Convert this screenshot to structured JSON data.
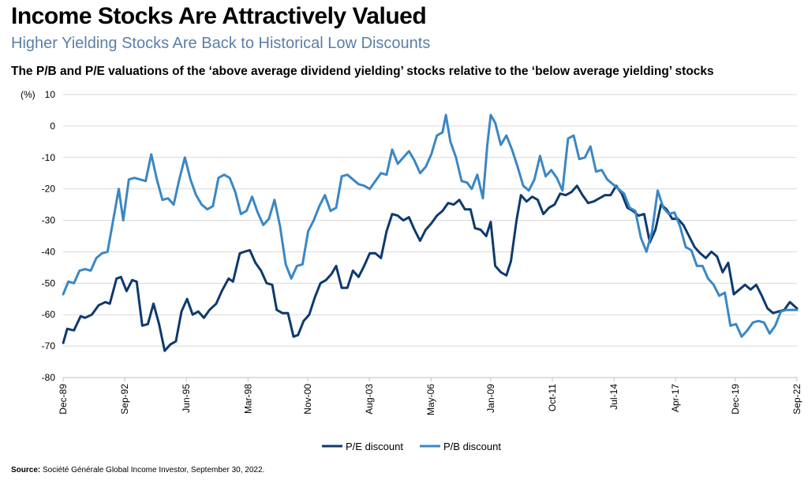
{
  "header": {
    "title": "Income Stocks Are Attractively Valued",
    "subtitle": "Higher Yielding Stocks Are Back to Historical Low Discounts",
    "caption": "The P/B and P/E valuations of the ‘above average dividend yielding’ stocks relative to the ‘below average yielding’ stocks"
  },
  "footer": {
    "source_label": "Source:",
    "source_text": " Société Générale Global Income Investor, September 30, 2022."
  },
  "chart_data": {
    "type": "line",
    "ylabel": "(%)",
    "ylim": [
      -80,
      10
    ],
    "yticks": [
      10,
      0,
      -10,
      -20,
      -30,
      -40,
      -50,
      -60,
      -70,
      -80
    ],
    "xrange": [
      1989.917,
      2022.667
    ],
    "xticks": [
      {
        "label": "Dec-89",
        "x": 1989.917
      },
      {
        "label": "Sep-92",
        "x": 1992.667
      },
      {
        "label": "Jun-95",
        "x": 1995.417
      },
      {
        "label": "Mar-98",
        "x": 1998.167
      },
      {
        "label": "Nov-00",
        "x": 2000.833
      },
      {
        "label": "Aug-03",
        "x": 2003.583
      },
      {
        "label": "May-06",
        "x": 2006.333
      },
      {
        "label": "Jan-09",
        "x": 2009.0
      },
      {
        "label": "Oct-11",
        "x": 2011.75
      },
      {
        "label": "Jul-14",
        "x": 2014.5
      },
      {
        "label": "Apr-17",
        "x": 2017.25
      },
      {
        "label": "Dec-19",
        "x": 2019.917
      },
      {
        "label": "Sep-22",
        "x": 2022.667
      }
    ],
    "grid": true,
    "legend_position": "bottom-center",
    "series": [
      {
        "name": "P/E discount",
        "color": "#0d3a6e",
        "points": [
          [
            1989.92,
            -69
          ],
          [
            1990.1,
            -64.5
          ],
          [
            1990.4,
            -65
          ],
          [
            1990.7,
            -60.5
          ],
          [
            1990.9,
            -61
          ],
          [
            1991.2,
            -60
          ],
          [
            1991.5,
            -57
          ],
          [
            1991.8,
            -56
          ],
          [
            1992.0,
            -56.5
          ],
          [
            1992.3,
            -48.5
          ],
          [
            1992.5,
            -48
          ],
          [
            1992.75,
            -52.5
          ],
          [
            1993.0,
            -49
          ],
          [
            1993.2,
            -49.5
          ],
          [
            1993.45,
            -63.5
          ],
          [
            1993.7,
            -63
          ],
          [
            1993.95,
            -56.5
          ],
          [
            1994.2,
            -63
          ],
          [
            1994.45,
            -71.5
          ],
          [
            1994.7,
            -69.5
          ],
          [
            1994.95,
            -68.5
          ],
          [
            1995.2,
            -59
          ],
          [
            1995.45,
            -55
          ],
          [
            1995.7,
            -60
          ],
          [
            1995.95,
            -59
          ],
          [
            1996.2,
            -61
          ],
          [
            1996.45,
            -58.5
          ],
          [
            1996.75,
            -56.5
          ],
          [
            1997.0,
            -52.5
          ],
          [
            1997.3,
            -48.5
          ],
          [
            1997.5,
            -49.5
          ],
          [
            1997.8,
            -40.5
          ],
          [
            1998.0,
            -40
          ],
          [
            1998.25,
            -39.5
          ],
          [
            1998.5,
            -43.5
          ],
          [
            1998.75,
            -46
          ],
          [
            1999.0,
            -50
          ],
          [
            1999.25,
            -50.5
          ],
          [
            1999.45,
            -58.5
          ],
          [
            1999.7,
            -59.5
          ],
          [
            1999.95,
            -59.5
          ],
          [
            2000.2,
            -67
          ],
          [
            2000.4,
            -66.5
          ],
          [
            2000.65,
            -62
          ],
          [
            2000.9,
            -60
          ],
          [
            2001.15,
            -54.5
          ],
          [
            2001.4,
            -50
          ],
          [
            2001.65,
            -49
          ],
          [
            2001.9,
            -47
          ],
          [
            2002.1,
            -44.5
          ],
          [
            2002.35,
            -51.5
          ],
          [
            2002.6,
            -51.5
          ],
          [
            2002.85,
            -46
          ],
          [
            2003.1,
            -48
          ],
          [
            2003.35,
            -44.5
          ],
          [
            2003.6,
            -40.5
          ],
          [
            2003.85,
            -40.5
          ],
          [
            2004.1,
            -42
          ],
          [
            2004.35,
            -33.5
          ],
          [
            2004.6,
            -28
          ],
          [
            2004.85,
            -28.5
          ],
          [
            2005.1,
            -30
          ],
          [
            2005.35,
            -29
          ],
          [
            2005.6,
            -33
          ],
          [
            2005.85,
            -36.5
          ],
          [
            2006.1,
            -33
          ],
          [
            2006.35,
            -31
          ],
          [
            2006.6,
            -28.5
          ],
          [
            2006.85,
            -27
          ],
          [
            2007.1,
            -24.5
          ],
          [
            2007.35,
            -25
          ],
          [
            2007.6,
            -23.5
          ],
          [
            2007.85,
            -26.5
          ],
          [
            2008.1,
            -26.5
          ],
          [
            2008.3,
            -32.5
          ],
          [
            2008.55,
            -33
          ],
          [
            2008.8,
            -35
          ],
          [
            2009.0,
            -30.5
          ],
          [
            2009.2,
            -44.5
          ],
          [
            2009.45,
            -46.5
          ],
          [
            2009.7,
            -47.5
          ],
          [
            2009.9,
            -43
          ],
          [
            2010.15,
            -30
          ],
          [
            2010.35,
            -22
          ],
          [
            2010.6,
            -24
          ],
          [
            2010.85,
            -22.5
          ],
          [
            2011.1,
            -23.5
          ],
          [
            2011.35,
            -28
          ],
          [
            2011.6,
            -26
          ],
          [
            2011.85,
            -25
          ],
          [
            2012.1,
            -21.5
          ],
          [
            2012.35,
            -22
          ],
          [
            2012.6,
            -21
          ],
          [
            2012.85,
            -19
          ],
          [
            2013.1,
            -22
          ],
          [
            2013.35,
            -24.5
          ],
          [
            2013.6,
            -24
          ],
          [
            2013.85,
            -23
          ],
          [
            2014.1,
            -22
          ],
          [
            2014.35,
            -22
          ],
          [
            2014.6,
            -19
          ],
          [
            2014.85,
            -21.5
          ],
          [
            2015.1,
            -26
          ],
          [
            2015.35,
            -27
          ],
          [
            2015.6,
            -28.5
          ],
          [
            2015.85,
            -28
          ],
          [
            2016.1,
            -37
          ],
          [
            2016.35,
            -33
          ],
          [
            2016.6,
            -25
          ],
          [
            2016.85,
            -26.5
          ],
          [
            2017.1,
            -29.5
          ],
          [
            2017.35,
            -29.5
          ],
          [
            2017.6,
            -31.5
          ],
          [
            2017.85,
            -35
          ],
          [
            2018.1,
            -38.5
          ],
          [
            2018.35,
            -40.5
          ],
          [
            2018.6,
            -42
          ],
          [
            2018.85,
            -40
          ],
          [
            2019.1,
            -41.5
          ],
          [
            2019.35,
            -46.5
          ],
          [
            2019.6,
            -43.5
          ],
          [
            2019.85,
            -53.5
          ],
          [
            2020.1,
            -52
          ],
          [
            2020.35,
            -50.5
          ],
          [
            2020.6,
            -52
          ],
          [
            2020.85,
            -50.5
          ],
          [
            2021.1,
            -54
          ],
          [
            2021.35,
            -58
          ],
          [
            2021.6,
            -59.5
          ],
          [
            2021.85,
            -59
          ],
          [
            2022.1,
            -58.5
          ],
          [
            2022.35,
            -56
          ],
          [
            2022.667,
            -58
          ]
        ]
      },
      {
        "name": "P/B discount",
        "color": "#3b87c4",
        "points": [
          [
            1989.92,
            -53.5
          ],
          [
            1990.15,
            -49.5
          ],
          [
            1990.4,
            -50
          ],
          [
            1990.65,
            -46
          ],
          [
            1990.9,
            -45.5
          ],
          [
            1991.15,
            -46
          ],
          [
            1991.4,
            -42
          ],
          [
            1991.65,
            -40.5
          ],
          [
            1991.9,
            -40
          ],
          [
            1992.15,
            -30
          ],
          [
            1992.4,
            -20
          ],
          [
            1992.6,
            -30
          ],
          [
            1992.85,
            -17
          ],
          [
            1993.1,
            -16.5
          ],
          [
            1993.35,
            -17
          ],
          [
            1993.6,
            -17.5
          ],
          [
            1993.85,
            -9
          ],
          [
            1994.1,
            -17
          ],
          [
            1994.35,
            -23.5
          ],
          [
            1994.6,
            -23
          ],
          [
            1994.85,
            -25
          ],
          [
            1995.1,
            -17
          ],
          [
            1995.35,
            -10
          ],
          [
            1995.6,
            -17
          ],
          [
            1995.85,
            -22
          ],
          [
            1996.1,
            -25
          ],
          [
            1996.35,
            -26.5
          ],
          [
            1996.6,
            -25.5
          ],
          [
            1996.85,
            -16.5
          ],
          [
            1997.1,
            -15.5
          ],
          [
            1997.35,
            -16.5
          ],
          [
            1997.6,
            -21
          ],
          [
            1997.85,
            -28
          ],
          [
            1998.1,
            -27
          ],
          [
            1998.35,
            -22.5
          ],
          [
            1998.6,
            -27.5
          ],
          [
            1998.85,
            -31.5
          ],
          [
            1999.1,
            -29.5
          ],
          [
            1999.35,
            -23.5
          ],
          [
            1999.6,
            -32
          ],
          [
            1999.85,
            -44
          ],
          [
            2000.1,
            -48.5
          ],
          [
            2000.35,
            -44.5
          ],
          [
            2000.6,
            -44
          ],
          [
            2000.85,
            -33.5
          ],
          [
            2001.1,
            -30
          ],
          [
            2001.35,
            -25.5
          ],
          [
            2001.6,
            -22
          ],
          [
            2001.85,
            -27
          ],
          [
            2002.1,
            -26
          ],
          [
            2002.35,
            -16
          ],
          [
            2002.6,
            -15.5
          ],
          [
            2002.85,
            -17
          ],
          [
            2003.1,
            -18.5
          ],
          [
            2003.35,
            -19
          ],
          [
            2003.6,
            -20
          ],
          [
            2003.85,
            -17.5
          ],
          [
            2004.1,
            -15
          ],
          [
            2004.35,
            -15.5
          ],
          [
            2004.6,
            -7.5
          ],
          [
            2004.85,
            -12
          ],
          [
            2005.1,
            -10
          ],
          [
            2005.35,
            -8
          ],
          [
            2005.6,
            -11
          ],
          [
            2005.85,
            -15
          ],
          [
            2006.1,
            -13
          ],
          [
            2006.35,
            -9
          ],
          [
            2006.6,
            -3
          ],
          [
            2006.85,
            -2
          ],
          [
            2007.0,
            3.5
          ],
          [
            2007.2,
            -5
          ],
          [
            2007.45,
            -10
          ],
          [
            2007.7,
            -17.5
          ],
          [
            2007.95,
            -18
          ],
          [
            2008.15,
            -20
          ],
          [
            2008.4,
            -15.5
          ],
          [
            2008.65,
            -23
          ],
          [
            2008.85,
            -6
          ],
          [
            2009.0,
            3.5
          ],
          [
            2009.2,
            1
          ],
          [
            2009.45,
            -6
          ],
          [
            2009.7,
            -3
          ],
          [
            2009.95,
            -7.5
          ],
          [
            2010.2,
            -13
          ],
          [
            2010.45,
            -19
          ],
          [
            2010.7,
            -20.5
          ],
          [
            2010.95,
            -17
          ],
          [
            2011.2,
            -9.5
          ],
          [
            2011.45,
            -16
          ],
          [
            2011.7,
            -14
          ],
          [
            2011.95,
            -16.5
          ],
          [
            2012.2,
            -20.5
          ],
          [
            2012.45,
            -4
          ],
          [
            2012.7,
            -3
          ],
          [
            2012.95,
            -10.5
          ],
          [
            2013.2,
            -10
          ],
          [
            2013.45,
            -6.5
          ],
          [
            2013.7,
            -14.5
          ],
          [
            2013.95,
            -14
          ],
          [
            2014.2,
            -17
          ],
          [
            2014.45,
            -18.5
          ],
          [
            2014.7,
            -20
          ],
          [
            2014.95,
            -21.5
          ],
          [
            2015.2,
            -26
          ],
          [
            2015.45,
            -27
          ],
          [
            2015.7,
            -35.5
          ],
          [
            2015.95,
            -40
          ],
          [
            2016.2,
            -33.5
          ],
          [
            2016.45,
            -20.5
          ],
          [
            2016.7,
            -26
          ],
          [
            2016.95,
            -28
          ],
          [
            2017.2,
            -27.5
          ],
          [
            2017.45,
            -32
          ],
          [
            2017.7,
            -38.5
          ],
          [
            2017.95,
            -39.5
          ],
          [
            2018.2,
            -44.5
          ],
          [
            2018.45,
            -44.5
          ],
          [
            2018.7,
            -48.5
          ],
          [
            2018.95,
            -50.5
          ],
          [
            2019.2,
            -54
          ],
          [
            2019.45,
            -53
          ],
          [
            2019.7,
            -63.5
          ],
          [
            2019.95,
            -63
          ],
          [
            2020.2,
            -67
          ],
          [
            2020.45,
            -65
          ],
          [
            2020.7,
            -62.5
          ],
          [
            2020.95,
            -62
          ],
          [
            2021.2,
            -62.5
          ],
          [
            2021.45,
            -66
          ],
          [
            2021.7,
            -63.5
          ],
          [
            2021.95,
            -59
          ],
          [
            2022.2,
            -58.5
          ],
          [
            2022.667,
            -58.5
          ]
        ]
      }
    ]
  }
}
